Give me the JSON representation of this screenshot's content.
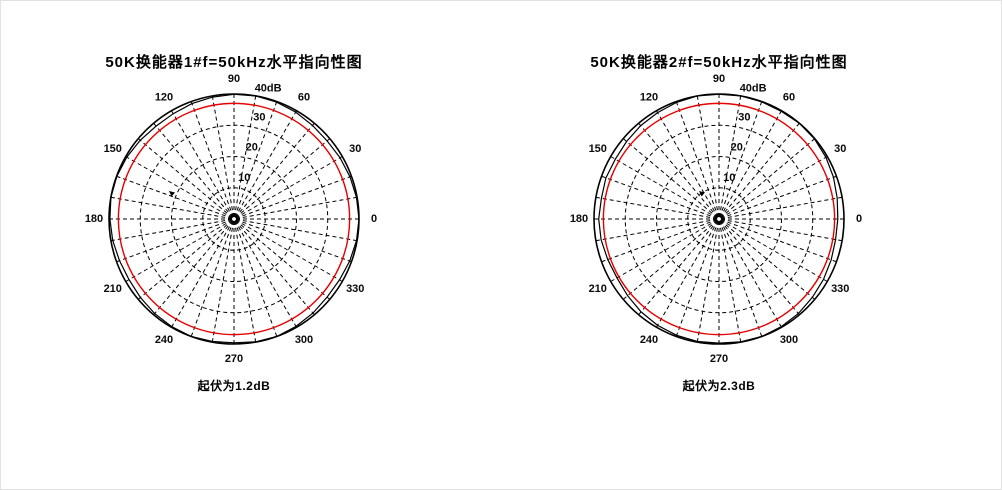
{
  "window": {
    "background": "#ffffff",
    "border_color": "#e2e2e2"
  },
  "chart_data": [
    {
      "type": "polar",
      "title": "50K换能器1#f=50kHz水平指向性图",
      "caption": "起伏为1.2dB",
      "fluctuation_db": 1.2,
      "angle_labels_deg": [
        0,
        30,
        60,
        90,
        120,
        150,
        180,
        210,
        240,
        270,
        300,
        330
      ],
      "spoke_step_deg": 10,
      "radial_ticks_db": [
        10,
        20,
        30
      ],
      "radial_axis_label": "40dB",
      "r_max_db": 40,
      "reference_circle_db": 37,
      "grid_style": "dashed",
      "colors": {
        "grid": "#000000",
        "data_curve": "#000000",
        "reference_circle": "#e60000",
        "labels": "#0a0a0a"
      },
      "series": [
        {
          "name": "horizontal-directivity-1",
          "angles_deg": [
            0,
            10,
            20,
            30,
            40,
            50,
            60,
            70,
            80,
            90,
            100,
            110,
            120,
            130,
            140,
            150,
            160,
            170,
            180,
            190,
            200,
            210,
            220,
            230,
            240,
            250,
            260,
            270,
            280,
            290,
            300,
            310,
            320,
            330,
            340,
            350
          ],
          "values_db": [
            40.0,
            39.8,
            39.5,
            39.2,
            38.9,
            39.1,
            39.5,
            39.8,
            40.0,
            39.9,
            39.6,
            39.3,
            38.9,
            38.8,
            39.2,
            39.6,
            39.9,
            40.0,
            39.7,
            39.4,
            39.0,
            38.8,
            39.1,
            39.5,
            39.8,
            40.0,
            39.8,
            39.6,
            39.9,
            40.0,
            39.7,
            39.3,
            38.9,
            39.0,
            39.4,
            39.8
          ]
        }
      ],
      "arrow_marker": {
        "dx": -65,
        "dy": -28
      }
    },
    {
      "type": "polar",
      "title": "50K换能器2#f=50kHz水平指向性图",
      "caption": "起伏为2.3dB",
      "fluctuation_db": 2.3,
      "angle_labels_deg": [
        0,
        30,
        60,
        90,
        120,
        150,
        180,
        210,
        240,
        270,
        300,
        330
      ],
      "spoke_step_deg": 10,
      "radial_ticks_db": [
        10,
        20,
        30
      ],
      "radial_axis_label": "40dB",
      "r_max_db": 40,
      "reference_circle_db": 37,
      "grid_style": "dashed",
      "colors": {
        "grid": "#000000",
        "data_curve": "#000000",
        "reference_circle": "#e60000",
        "labels": "#0a0a0a"
      },
      "series": [
        {
          "name": "horizontal-directivity-2",
          "angles_deg": [
            0,
            10,
            20,
            30,
            40,
            50,
            60,
            70,
            80,
            90,
            100,
            110,
            120,
            130,
            140,
            150,
            160,
            170,
            180,
            190,
            200,
            210,
            220,
            230,
            240,
            250,
            260,
            270,
            280,
            290,
            300,
            310,
            320,
            330,
            340,
            350
          ],
          "values_db": [
            38.0,
            38.4,
            39.0,
            39.5,
            39.9,
            40.0,
            39.8,
            39.9,
            40.0,
            39.9,
            40.0,
            39.7,
            39.3,
            39.0,
            38.6,
            38.3,
            38.5,
            38.2,
            38.5,
            38.3,
            37.9,
            37.7,
            38.2,
            38.8,
            39.3,
            39.6,
            39.8,
            39.7,
            39.9,
            40.0,
            39.8,
            39.5,
            39.0,
            38.6,
            38.2,
            37.9
          ]
        }
      ],
      "arrow_marker": {
        "dx": -20,
        "dy": -28
      }
    }
  ],
  "layout_labels": {
    "chart1_name": "polar-chart-1",
    "chart2_name": "polar-chart-2"
  }
}
